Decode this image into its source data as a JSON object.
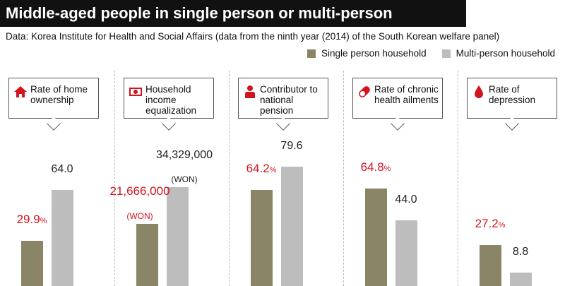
{
  "title": "Middle-aged people in single person or multi-person households",
  "source": "Data: Korea Institute for Health and Social Affairs (data from the ninth year (2014) of the South Korean welfare panel)",
  "colors": {
    "single": "#8a8566",
    "multi": "#bdbdbd",
    "accent": "#d3141c"
  },
  "chart_data": {
    "type": "bar",
    "legend_position": "top-right",
    "series": [
      {
        "name": "Single person household"
      },
      {
        "name": "Multi-person household"
      }
    ],
    "panels": [
      {
        "label": "Rate of home ownership",
        "icon": "house-icon",
        "single": 29.9,
        "multi": 64.0,
        "single_label": "29.9",
        "multi_label": "64.0",
        "single_unit": "%",
        "multi_unit": ""
      },
      {
        "label": "Household income equalization",
        "icon": "money-icon",
        "single": 21666000,
        "multi": 34329000,
        "single_label": "21,666,000",
        "multi_label": "34,329,000",
        "single_unit": "(WON)",
        "multi_unit": "(WON)"
      },
      {
        "label": "Contributor to national pension",
        "icon": "person-icon",
        "single": 64.2,
        "multi": 79.6,
        "single_label": "64.2",
        "multi_label": "79.6",
        "single_unit": "%",
        "multi_unit": ""
      },
      {
        "label": "Rate of chronic health ailments",
        "icon": "pill-icon",
        "single": 64.8,
        "multi": 44.0,
        "single_label": "64.8",
        "multi_label": "44.0",
        "single_unit": "%",
        "multi_unit": ""
      },
      {
        "label": "Rate of depression",
        "icon": "drop-icon",
        "single": 27.2,
        "multi": 8.8,
        "single_label": "27.2",
        "multi_label": "8.8",
        "single_unit": "%",
        "multi_unit": ""
      }
    ]
  }
}
